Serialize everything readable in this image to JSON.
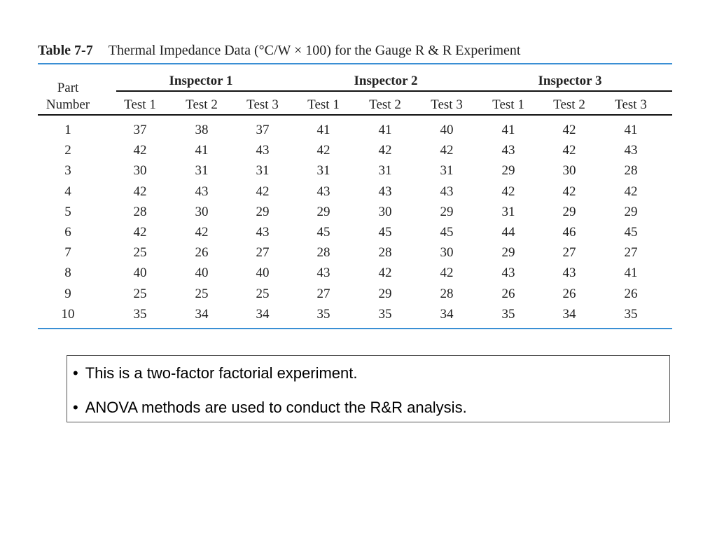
{
  "table": {
    "number": "Table 7-7",
    "title": "Thermal Impedance Data (°C/W × 100) for the Gauge R & R Experiment",
    "part_header_line1": "Part",
    "part_header_line2": "Number",
    "inspectors": [
      "Inspector 1",
      "Inspector 2",
      "Inspector 3"
    ],
    "test_headers": [
      "Test 1",
      "Test 2",
      "Test 3",
      "Test 1",
      "Test 2",
      "Test 3",
      "Test 1",
      "Test 2",
      "Test 3"
    ],
    "rows": [
      {
        "part": "1",
        "values": [
          "37",
          "38",
          "37",
          "41",
          "41",
          "40",
          "41",
          "42",
          "41"
        ]
      },
      {
        "part": "2",
        "values": [
          "42",
          "41",
          "43",
          "42",
          "42",
          "42",
          "43",
          "42",
          "43"
        ]
      },
      {
        "part": "3",
        "values": [
          "30",
          "31",
          "31",
          "31",
          "31",
          "31",
          "29",
          "30",
          "28"
        ]
      },
      {
        "part": "4",
        "values": [
          "42",
          "43",
          "42",
          "43",
          "43",
          "43",
          "42",
          "42",
          "42"
        ]
      },
      {
        "part": "5",
        "values": [
          "28",
          "30",
          "29",
          "29",
          "30",
          "29",
          "31",
          "29",
          "29"
        ]
      },
      {
        "part": "6",
        "values": [
          "42",
          "42",
          "43",
          "45",
          "45",
          "45",
          "44",
          "46",
          "45"
        ]
      },
      {
        "part": "7",
        "values": [
          "25",
          "26",
          "27",
          "28",
          "28",
          "30",
          "29",
          "27",
          "27"
        ]
      },
      {
        "part": "8",
        "values": [
          "40",
          "40",
          "40",
          "43",
          "42",
          "42",
          "43",
          "43",
          "41"
        ]
      },
      {
        "part": "9",
        "values": [
          "25",
          "25",
          "25",
          "27",
          "29",
          "28",
          "26",
          "26",
          "26"
        ]
      },
      {
        "part": "10",
        "values": [
          "35",
          "34",
          "34",
          "35",
          "35",
          "34",
          "35",
          "34",
          "35"
        ]
      }
    ]
  },
  "notes": {
    "bullet_symbol": "•",
    "items": [
      "This is a two-factor factorial experiment.",
      "ANOVA methods are used to conduct the R&R analysis."
    ]
  },
  "colors": {
    "rule_blue": "#3a8fd4",
    "rule_black": "#111111"
  }
}
